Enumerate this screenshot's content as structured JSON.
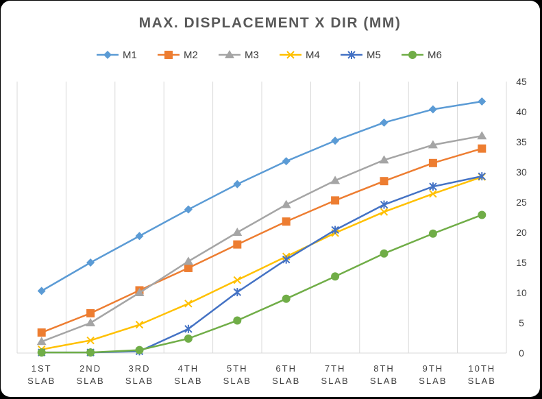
{
  "chart_data": {
    "type": "line",
    "title": "MAX. DISPLACEMENT X DIR (MM)",
    "categories": [
      "1ST SLAB",
      "2ND SLAB",
      "3RD SLAB",
      "4TH SLAB",
      "5TH SLAB",
      "6TH SLAB",
      "7TH SLAB",
      "8TH SLAB",
      "9TH SLAB",
      "10TH SLAB"
    ],
    "ylim": [
      0,
      45
    ],
    "yticks": [
      0,
      5,
      10,
      15,
      20,
      25,
      30,
      35,
      40,
      45
    ],
    "y_axis_side": "right",
    "grid": "vertical",
    "legend_position": "top",
    "series": [
      {
        "name": "M1",
        "color": "#5B9BD5",
        "marker": "diamond",
        "values": [
          10.3,
          15.0,
          19.4,
          23.8,
          28.0,
          31.8,
          35.2,
          38.2,
          40.4,
          41.7
        ]
      },
      {
        "name": "M2",
        "color": "#ED7D31",
        "marker": "square",
        "values": [
          3.4,
          6.6,
          10.4,
          14.1,
          18.0,
          21.8,
          25.3,
          28.5,
          31.5,
          33.9
        ]
      },
      {
        "name": "M3",
        "color": "#A5A5A5",
        "marker": "triangle",
        "values": [
          1.9,
          5.0,
          10.0,
          15.2,
          20.0,
          24.6,
          28.6,
          32.0,
          34.5,
          36.0
        ]
      },
      {
        "name": "M4",
        "color": "#FFC000",
        "marker": "x",
        "values": [
          0.6,
          2.1,
          4.7,
          8.2,
          12.1,
          16.0,
          19.9,
          23.4,
          26.4,
          29.2
        ]
      },
      {
        "name": "M5",
        "color": "#4472C4",
        "marker": "star",
        "values": [
          0.1,
          0.1,
          0.3,
          4.0,
          10.1,
          15.5,
          20.4,
          24.6,
          27.6,
          29.3
        ]
      },
      {
        "name": "M6",
        "color": "#70AD47",
        "marker": "circle",
        "values": [
          0.1,
          0.1,
          0.5,
          2.4,
          5.4,
          9.0,
          12.7,
          16.5,
          19.8,
          22.9
        ]
      }
    ]
  }
}
